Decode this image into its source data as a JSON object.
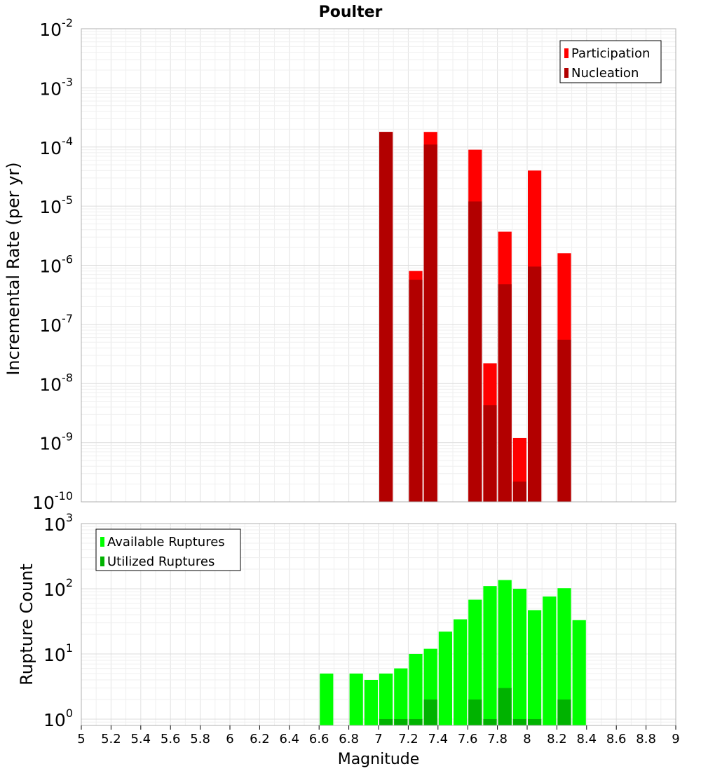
{
  "chart_data": [
    {
      "type": "bar",
      "title": "Poulter",
      "xlabel": "",
      "ylabel": "Incremental Rate (per yr)",
      "xlim": [
        5,
        9
      ],
      "ylim": [
        1e-10,
        0.01
      ],
      "yscale": "log",
      "grid": true,
      "bar_width": 0.1,
      "y_ticks": [
        {
          "base": "10",
          "exp": "-10"
        },
        {
          "base": "10",
          "exp": "-9"
        },
        {
          "base": "10",
          "exp": "-8"
        },
        {
          "base": "10",
          "exp": "-7"
        },
        {
          "base": "10",
          "exp": "-6"
        },
        {
          "base": "10",
          "exp": "-5"
        },
        {
          "base": "10",
          "exp": "-4"
        },
        {
          "base": "10",
          "exp": "-3"
        },
        {
          "base": "10",
          "exp": "-2"
        }
      ],
      "legend": {
        "position": "top-right",
        "entries": [
          "Participation",
          "Nucleation"
        ]
      },
      "series": [
        {
          "name": "Participation",
          "color": "#ff0000",
          "x": [
            7.05,
            7.25,
            7.35,
            7.65,
            7.75,
            7.85,
            7.95,
            8.05,
            8.25
          ],
          "values": [
            0.00018,
            8e-07,
            0.00018,
            9e-05,
            2.2e-08,
            3.7e-06,
            1.2e-09,
            4e-05,
            1.6e-06
          ]
        },
        {
          "name": "Nucleation",
          "color": "#b20000",
          "x": [
            7.05,
            7.25,
            7.35,
            7.65,
            7.75,
            7.85,
            7.95,
            8.05,
            8.25
          ],
          "values": [
            0.00018,
            5.7e-07,
            0.00011,
            1.2e-05,
            4.3e-09,
            4.8e-07,
            2.2e-10,
            9.5e-07,
            5.5e-08
          ]
        }
      ]
    },
    {
      "type": "bar",
      "title": "",
      "xlabel": "Magnitude",
      "ylabel": "Rupture Count",
      "xlim": [
        5,
        9
      ],
      "ylim": [
        0.8,
        1000
      ],
      "yscale": "log",
      "grid": true,
      "bar_width": 0.1,
      "x_ticks": [
        "5",
        "5.2",
        "5.4",
        "5.6",
        "5.8",
        "6",
        "6.2",
        "6.4",
        "6.6",
        "6.8",
        "7",
        "7.2",
        "7.4",
        "7.6",
        "7.8",
        "8",
        "8.2",
        "8.4",
        "8.6",
        "8.8",
        "9"
      ],
      "y_ticks": [
        {
          "base": "10",
          "exp": "0"
        },
        {
          "base": "10",
          "exp": "1"
        },
        {
          "base": "10",
          "exp": "2"
        },
        {
          "base": "10",
          "exp": "3"
        }
      ],
      "legend": {
        "position": "top-left",
        "entries": [
          "Available Ruptures",
          "Utilized Ruptures"
        ]
      },
      "series": [
        {
          "name": "Available Ruptures",
          "color": "#00ff00",
          "x": [
            6.65,
            6.85,
            6.95,
            7.05,
            7.15,
            7.25,
            7.35,
            7.45,
            7.55,
            7.65,
            7.75,
            7.85,
            7.95,
            8.05,
            8.15,
            8.25,
            8.35
          ],
          "values": [
            5,
            5,
            4,
            5,
            6,
            10,
            12,
            22,
            34,
            68,
            110,
            136,
            100,
            47,
            76,
            102,
            33
          ]
        },
        {
          "name": "Utilized Ruptures",
          "color": "#00b200",
          "x": [
            7.05,
            7.15,
            7.25,
            7.35,
            7.65,
            7.75,
            7.85,
            7.95,
            8.05,
            8.25
          ],
          "values": [
            1,
            1,
            1,
            2,
            2,
            1,
            3,
            1,
            1,
            2
          ]
        }
      ]
    }
  ]
}
